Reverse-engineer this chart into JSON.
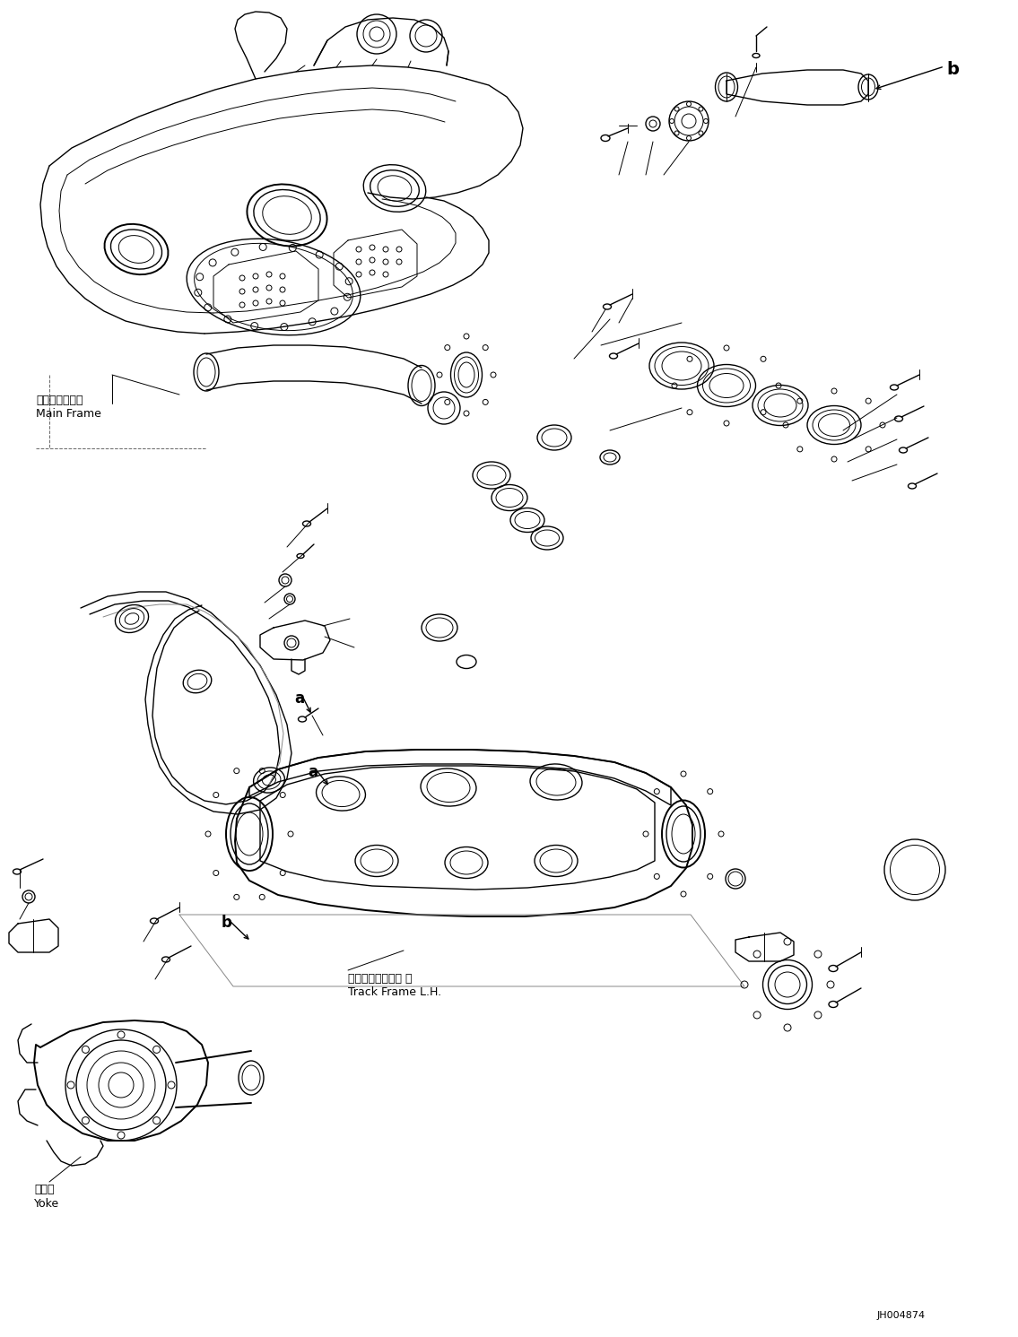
{
  "background_color": "#ffffff",
  "line_color": "#000000",
  "figure_id": "JH004874",
  "labels": {
    "main_frame_jp": "メインフレーム",
    "main_frame_en": "Main Frame",
    "track_frame_jp": "トラックフレーム 左",
    "track_frame_en": "Track Frame L.H.",
    "yoke_jp": "ヨーク",
    "yoke_en": "Yoke",
    "label_a": "a",
    "label_b": "b"
  },
  "figsize": [
    11.35,
    14.91
  ],
  "dpi": 100
}
